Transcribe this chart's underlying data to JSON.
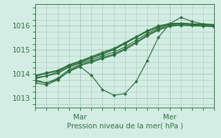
{
  "title": "",
  "xlabel": "Pression niveau de la mer( hPa )",
  "ylabel": "",
  "bg_color": "#d4ede4",
  "grid_color": "#a0c8b8",
  "line_color": "#2d6e3e",
  "marker_color": "#2d6e3e",
  "xlim": [
    0,
    96
  ],
  "ylim": [
    1012.6,
    1016.9
  ],
  "yticks": [
    1013,
    1014,
    1015,
    1016
  ],
  "xticks": [
    24,
    72
  ],
  "xticklabels": [
    "Mar",
    "Mer"
  ],
  "lines": [
    [
      0,
      1013.85,
      6,
      1013.92,
      12,
      1014.08,
      18,
      1014.32,
      24,
      1014.48,
      30,
      1014.65,
      36,
      1014.82,
      42,
      1015.0,
      48,
      1015.25,
      54,
      1015.52,
      60,
      1015.78,
      66,
      1016.0,
      72,
      1016.08,
      78,
      1016.1,
      84,
      1016.08,
      90,
      1016.05,
      96,
      1016.05
    ],
    [
      0,
      1013.75,
      6,
      1013.62,
      12,
      1013.78,
      18,
      1014.1,
      24,
      1014.3,
      30,
      1013.95,
      36,
      1013.35,
      42,
      1013.12,
      48,
      1013.18,
      54,
      1013.68,
      60,
      1014.55,
      66,
      1015.52,
      72,
      1016.08,
      78,
      1016.35,
      84,
      1016.18,
      90,
      1016.08,
      96,
      1016.05
    ],
    [
      0,
      1013.9,
      6,
      1014.02,
      12,
      1014.12,
      18,
      1014.36,
      24,
      1014.52,
      30,
      1014.68,
      36,
      1014.85,
      42,
      1015.02,
      48,
      1015.28,
      54,
      1015.52,
      60,
      1015.76,
      66,
      1015.95,
      72,
      1016.08,
      78,
      1016.1,
      84,
      1016.08,
      90,
      1016.06,
      96,
      1016.05
    ],
    [
      0,
      1013.95,
      6,
      1014.05,
      12,
      1014.15,
      18,
      1014.38,
      24,
      1014.54,
      30,
      1014.72,
      36,
      1014.9,
      42,
      1015.06,
      48,
      1015.3,
      54,
      1015.55,
      60,
      1015.8,
      66,
      1015.98,
      72,
      1016.1,
      78,
      1016.1,
      84,
      1016.08,
      90,
      1016.06,
      96,
      1016.05
    ],
    [
      0,
      1013.8,
      6,
      1013.92,
      12,
      1014.02,
      18,
      1014.28,
      24,
      1014.44,
      30,
      1014.58,
      36,
      1014.75,
      42,
      1014.9,
      48,
      1015.12,
      54,
      1015.4,
      60,
      1015.68,
      66,
      1015.9,
      72,
      1016.05,
      78,
      1016.08,
      84,
      1016.06,
      90,
      1016.04,
      96,
      1016.03
    ],
    [
      0,
      1013.7,
      6,
      1013.62,
      12,
      1013.82,
      18,
      1014.18,
      24,
      1014.38,
      30,
      1014.52,
      36,
      1014.68,
      42,
      1014.82,
      48,
      1015.05,
      54,
      1015.32,
      60,
      1015.62,
      66,
      1015.85,
      72,
      1016.0,
      78,
      1016.05,
      84,
      1016.03,
      90,
      1016.02,
      96,
      1016.0
    ],
    [
      0,
      1013.62,
      6,
      1013.55,
      12,
      1013.75,
      18,
      1014.12,
      24,
      1014.35,
      30,
      1014.48,
      36,
      1014.64,
      42,
      1014.78,
      48,
      1015.0,
      54,
      1015.28,
      60,
      1015.58,
      66,
      1015.82,
      72,
      1015.98,
      78,
      1016.02,
      84,
      1016.0,
      90,
      1015.98,
      96,
      1015.96
    ]
  ]
}
